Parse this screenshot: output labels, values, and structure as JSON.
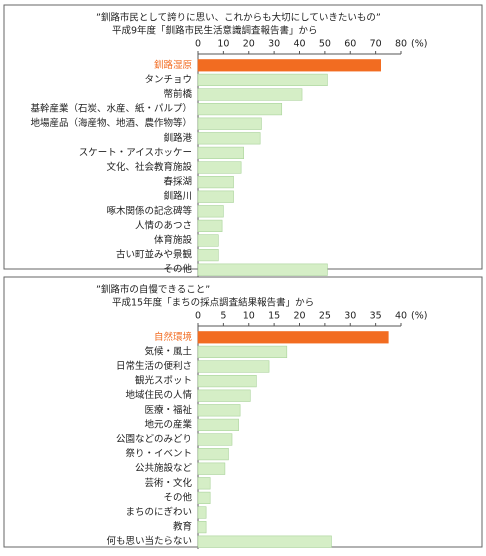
{
  "chart_data": [
    {
      "type": "bar",
      "orientation": "horizontal",
      "title": "”釧路市民として誇りに思い、これからも大切にしていきたいもの”",
      "subtitle": "平成9年度「釧路市民生活意識調査報告書」から",
      "xlabel": "(%)",
      "categories": [
        "釧路湿原",
        "タンチョウ",
        "幣前橋",
        "基幹産業（石炭、水産、紙・パルプ）",
        "地場産品（海産物、地酒、農作物等）",
        "釧路港",
        "スケート・アイスホッケー",
        "文化、社会教育施設",
        "春採湖",
        "釧路川",
        "啄木関係の記念碑等",
        "人情のあつさ",
        "体育施設",
        "古い町並みや景観",
        "その他"
      ],
      "values": [
        72,
        51,
        41,
        33,
        25,
        24.5,
        18,
        17,
        14,
        14,
        10,
        9.5,
        8,
        8,
        51
      ],
      "xlim": [
        0,
        80
      ],
      "xticks": [
        0,
        10,
        20,
        30,
        40,
        50,
        60,
        70,
        80
      ],
      "color": "#d5eec6",
      "highlight_color": "#f26c21",
      "highlight_index": 0
    },
    {
      "type": "bar",
      "orientation": "horizontal",
      "title": "”釧路市の自慢できること”",
      "subtitle": "平成15年度「まちの採点調査結果報告書」から",
      "xlabel": "(%)",
      "categories": [
        "自然環境",
        "気候・風土",
        "日常生活の便利さ",
        "観光スポット",
        "地域住民の人情",
        "医療・福祉",
        "地元の産業",
        "公園などのみどり",
        "祭り・イベント",
        "公共施設など",
        "芸術・文化",
        "その他",
        "まちのにぎわい",
        "教育",
        "何も思い当たらない"
      ],
      "values": [
        37.5,
        17.5,
        14,
        11.5,
        10.3,
        8.3,
        8,
        6.7,
        6,
        5.3,
        2.4,
        2.4,
        1.6,
        1.6,
        26.3
      ],
      "xlim": [
        0,
        40
      ],
      "xticks": [
        0,
        5,
        10,
        15,
        20,
        25,
        30,
        35,
        40
      ],
      "color": "#d5eec6",
      "highlight_color": "#f26c21",
      "highlight_index": 0
    }
  ]
}
